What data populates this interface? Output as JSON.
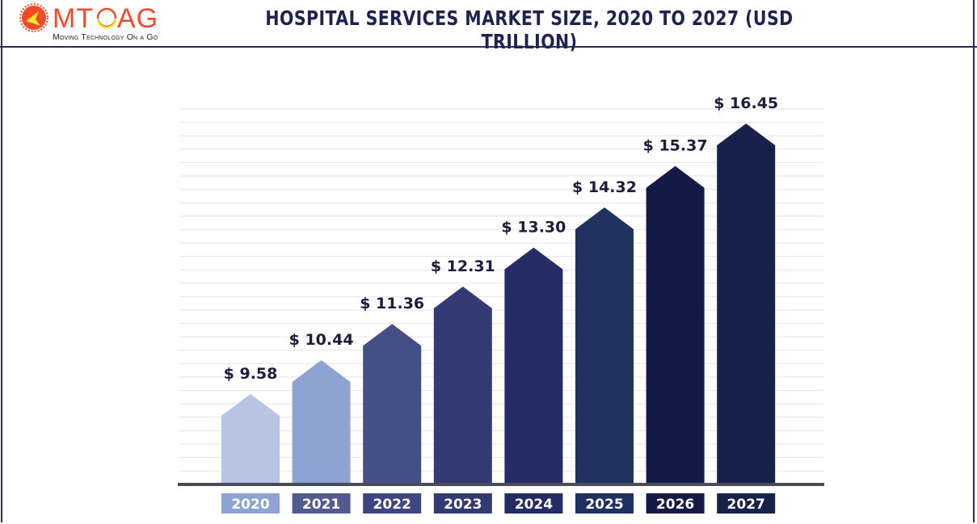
{
  "logo": {
    "brand": "MTOAG",
    "tagline": "Moving Technology On a Go",
    "colors": {
      "orange": "#ef4a2a",
      "yellow": "#f2e32a"
    }
  },
  "chart_data": {
    "type": "bar",
    "title": "HOSPITAL SERVICES MARKET SIZE, 2020 TO 2027 (USD TRILLION)",
    "categories": [
      "2020",
      "2021",
      "2022",
      "2023",
      "2024",
      "2025",
      "2026",
      "2027"
    ],
    "values": [
      9.58,
      10.44,
      11.36,
      12.31,
      13.3,
      14.32,
      15.37,
      16.45
    ],
    "data_labels": [
      "$ 9.58",
      "$ 10.44",
      "$ 11.36",
      "$ 12.31",
      "$ 13.30",
      "$ 14.32",
      "$ 15.37",
      "$ 16.45"
    ],
    "bar_shape": "arrow",
    "grid": true,
    "bar_colors": [
      "#b8c4e4",
      "#8fa3d3",
      "#444f86",
      "#333a74",
      "#252c66",
      "#1f3260",
      "#131a45",
      "#17214a"
    ],
    "label_box_colors": [
      "#8fa3d3",
      "#515b8f",
      "#3d4681",
      "#323a72",
      "#252b65",
      "#1f3160",
      "#141a45",
      "#18214a"
    ]
  }
}
